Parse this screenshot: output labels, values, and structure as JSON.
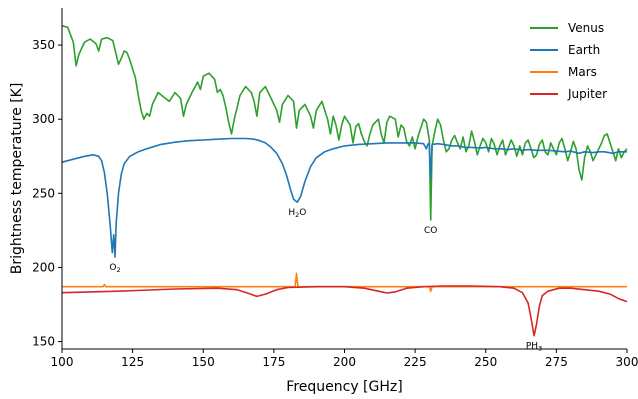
{
  "chart_data": {
    "type": "line",
    "title": "",
    "xlabel": "Frequency [GHz]",
    "ylabel": "Brightness temperature [K]",
    "xlim": [
      100,
      300
    ],
    "ylim": [
      145,
      375
    ],
    "xticks": [
      100,
      125,
      150,
      175,
      200,
      225,
      250,
      275,
      300
    ],
    "yticks": [
      150,
      200,
      250,
      300,
      350
    ],
    "grid": false,
    "legend_position": "top-right",
    "series": [
      {
        "name": "Venus",
        "color": "#2ca02c",
        "points": [
          [
            100,
            363
          ],
          [
            102,
            362
          ],
          [
            104,
            352
          ],
          [
            105,
            336
          ],
          [
            106,
            344
          ],
          [
            108,
            352
          ],
          [
            110,
            354
          ],
          [
            112,
            351
          ],
          [
            113,
            346
          ],
          [
            114,
            354
          ],
          [
            116,
            355
          ],
          [
            118,
            353
          ],
          [
            119,
            345
          ],
          [
            120,
            337
          ],
          [
            121,
            341
          ],
          [
            122,
            346
          ],
          [
            123,
            345
          ],
          [
            124,
            340
          ],
          [
            126,
            328
          ],
          [
            127,
            316
          ],
          [
            128,
            306
          ],
          [
            129,
            300
          ],
          [
            130,
            304
          ],
          [
            131,
            302
          ],
          [
            132,
            310
          ],
          [
            134,
            318
          ],
          [
            136,
            315
          ],
          [
            138,
            312
          ],
          [
            140,
            318
          ],
          [
            142,
            314
          ],
          [
            143,
            302
          ],
          [
            144,
            310
          ],
          [
            146,
            318
          ],
          [
            148,
            325
          ],
          [
            149,
            320
          ],
          [
            150,
            329
          ],
          [
            152,
            331
          ],
          [
            154,
            327
          ],
          [
            155,
            318
          ],
          [
            156,
            320
          ],
          [
            157,
            316
          ],
          [
            158,
            308
          ],
          [
            159,
            298
          ],
          [
            160,
            290
          ],
          [
            161,
            300
          ],
          [
            163,
            316
          ],
          [
            165,
            322
          ],
          [
            167,
            318
          ],
          [
            168,
            312
          ],
          [
            169,
            302
          ],
          [
            170,
            318
          ],
          [
            172,
            322
          ],
          [
            174,
            314
          ],
          [
            176,
            306
          ],
          [
            177,
            298
          ],
          [
            178,
            310
          ],
          [
            180,
            316
          ],
          [
            182,
            312
          ],
          [
            183,
            294
          ],
          [
            184,
            306
          ],
          [
            186,
            310
          ],
          [
            188,
            302
          ],
          [
            189,
            294
          ],
          [
            190,
            306
          ],
          [
            192,
            312
          ],
          [
            194,
            300
          ],
          [
            195,
            290
          ],
          [
            196,
            302
          ],
          [
            197,
            296
          ],
          [
            198,
            286
          ],
          [
            199,
            296
          ],
          [
            200,
            302
          ],
          [
            202,
            296
          ],
          [
            203,
            284
          ],
          [
            204,
            295
          ],
          [
            205,
            297
          ],
          [
            206,
            290
          ],
          [
            207,
            285
          ],
          [
            208,
            282
          ],
          [
            209,
            290
          ],
          [
            210,
            296
          ],
          [
            212,
            300
          ],
          [
            213,
            290
          ],
          [
            214,
            284
          ],
          [
            215,
            298
          ],
          [
            216,
            302
          ],
          [
            218,
            300
          ],
          [
            219,
            288
          ],
          [
            220,
            296
          ],
          [
            221,
            294
          ],
          [
            222,
            285
          ],
          [
            223,
            282
          ],
          [
            224,
            288
          ],
          [
            225,
            280
          ],
          [
            226,
            288
          ],
          [
            228,
            300
          ],
          [
            229,
            298
          ],
          [
            230,
            286
          ],
          [
            230.5,
            232
          ],
          [
            231,
            282
          ],
          [
            232,
            292
          ],
          [
            233,
            300
          ],
          [
            234,
            296
          ],
          [
            235,
            286
          ],
          [
            236,
            278
          ],
          [
            237,
            280
          ],
          [
            238,
            286
          ],
          [
            239,
            289
          ],
          [
            240,
            284
          ],
          [
            241,
            280
          ],
          [
            242,
            288
          ],
          [
            243,
            278
          ],
          [
            244,
            282
          ],
          [
            245,
            292
          ],
          [
            246,
            285
          ],
          [
            247,
            276
          ],
          [
            248,
            282
          ],
          [
            249,
            287
          ],
          [
            250,
            284
          ],
          [
            251,
            278
          ],
          [
            252,
            287
          ],
          [
            253,
            283
          ],
          [
            254,
            276
          ],
          [
            255,
            282
          ],
          [
            256,
            286
          ],
          [
            257,
            276
          ],
          [
            258,
            281
          ],
          [
            259,
            286
          ],
          [
            260,
            282
          ],
          [
            261,
            275
          ],
          [
            262,
            282
          ],
          [
            263,
            276
          ],
          [
            264,
            284
          ],
          [
            265,
            286
          ],
          [
            266,
            280
          ],
          [
            267,
            274
          ],
          [
            268,
            276
          ],
          [
            269,
            283
          ],
          [
            270,
            286
          ],
          [
            271,
            278
          ],
          [
            272,
            276
          ],
          [
            273,
            284
          ],
          [
            274,
            280
          ],
          [
            275,
            276
          ],
          [
            276,
            284
          ],
          [
            277,
            287
          ],
          [
            278,
            280
          ],
          [
            279,
            272
          ],
          [
            280,
            278
          ],
          [
            281,
            285
          ],
          [
            282,
            280
          ],
          [
            283,
            266
          ],
          [
            284,
            259
          ],
          [
            285,
            274
          ],
          [
            286,
            282
          ],
          [
            287,
            278
          ],
          [
            288,
            272
          ],
          [
            289,
            276
          ],
          [
            290,
            280
          ],
          [
            291,
            284
          ],
          [
            292,
            289
          ],
          [
            293,
            290
          ],
          [
            294,
            284
          ],
          [
            295,
            278
          ],
          [
            296,
            272
          ],
          [
            297,
            280
          ],
          [
            298,
            274
          ],
          [
            299,
            278
          ],
          [
            300,
            280
          ]
        ]
      },
      {
        "name": "Earth",
        "color": "#1f77b4",
        "points": [
          [
            100,
            271
          ],
          [
            104,
            273
          ],
          [
            108,
            275
          ],
          [
            111,
            276
          ],
          [
            113,
            275
          ],
          [
            114,
            272
          ],
          [
            115,
            264
          ],
          [
            116,
            250
          ],
          [
            117,
            230
          ],
          [
            117.8,
            210
          ],
          [
            118.3,
            222
          ],
          [
            118.75,
            207
          ],
          [
            119.2,
            230
          ],
          [
            120,
            250
          ],
          [
            121,
            263
          ],
          [
            122,
            270
          ],
          [
            124,
            275
          ],
          [
            127,
            278
          ],
          [
            130,
            280
          ],
          [
            135,
            283
          ],
          [
            140,
            284.5
          ],
          [
            145,
            285.5
          ],
          [
            150,
            286
          ],
          [
            155,
            286.5
          ],
          [
            160,
            287
          ],
          [
            165,
            287
          ],
          [
            168,
            286.5
          ],
          [
            170,
            285.5
          ],
          [
            172,
            284
          ],
          [
            174,
            281
          ],
          [
            176,
            277
          ],
          [
            178,
            270
          ],
          [
            179.5,
            262
          ],
          [
            181,
            252
          ],
          [
            182,
            246
          ],
          [
            183.3,
            244
          ],
          [
            184.5,
            248
          ],
          [
            186,
            258
          ],
          [
            188,
            268
          ],
          [
            190,
            274
          ],
          [
            193,
            278
          ],
          [
            196,
            280
          ],
          [
            200,
            282
          ],
          [
            205,
            283
          ],
          [
            210,
            283.5
          ],
          [
            215,
            284
          ],
          [
            220,
            284
          ],
          [
            225,
            284
          ],
          [
            228,
            283.5
          ],
          [
            229,
            280
          ],
          [
            229.5,
            283
          ],
          [
            230,
            284
          ],
          [
            230.5,
            260
          ],
          [
            231,
            283
          ],
          [
            233,
            283.5
          ],
          [
            235,
            283
          ],
          [
            238,
            282
          ],
          [
            240,
            282
          ],
          [
            243,
            281
          ],
          [
            245,
            281
          ],
          [
            248,
            280.5
          ],
          [
            250,
            281
          ],
          [
            253,
            280
          ],
          [
            255,
            280
          ],
          [
            258,
            279.5
          ],
          [
            260,
            280
          ],
          [
            263,
            279
          ],
          [
            265,
            279.5
          ],
          [
            268,
            279
          ],
          [
            270,
            279
          ],
          [
            272,
            279
          ],
          [
            275,
            278.5
          ],
          [
            278,
            278
          ],
          [
            280,
            278.5
          ],
          [
            283,
            277
          ],
          [
            285,
            278
          ],
          [
            288,
            277.5
          ],
          [
            290,
            278
          ],
          [
            292,
            278
          ],
          [
            295,
            277
          ],
          [
            297,
            278
          ],
          [
            300,
            278
          ]
        ]
      },
      {
        "name": "Mars",
        "color": "#ff7f0e",
        "points": [
          [
            100,
            187
          ],
          [
            114.5,
            187
          ],
          [
            115,
            188.5
          ],
          [
            115.5,
            187
          ],
          [
            182.5,
            187
          ],
          [
            183,
            196
          ],
          [
            183.5,
            187
          ],
          [
            230,
            187
          ],
          [
            230.5,
            184
          ],
          [
            231,
            187
          ],
          [
            300,
            187
          ]
        ]
      },
      {
        "name": "Jupiter",
        "color": "#d62728",
        "points": [
          [
            100,
            183
          ],
          [
            120,
            184
          ],
          [
            140,
            185.5
          ],
          [
            155,
            186
          ],
          [
            162,
            185
          ],
          [
            166,
            182.5
          ],
          [
            169,
            180.5
          ],
          [
            172,
            182
          ],
          [
            176,
            185
          ],
          [
            180,
            186.5
          ],
          [
            190,
            187
          ],
          [
            200,
            187
          ],
          [
            207,
            186
          ],
          [
            212,
            184
          ],
          [
            215,
            182.8
          ],
          [
            218,
            183.5
          ],
          [
            222,
            186
          ],
          [
            228,
            187
          ],
          [
            235,
            187.5
          ],
          [
            245,
            187.5
          ],
          [
            255,
            187
          ],
          [
            260,
            186
          ],
          [
            263,
            183
          ],
          [
            265,
            176
          ],
          [
            266,
            166
          ],
          [
            267.1,
            154
          ],
          [
            268,
            162
          ],
          [
            269,
            174
          ],
          [
            270,
            181
          ],
          [
            272,
            184
          ],
          [
            276,
            186
          ],
          [
            280,
            186
          ],
          [
            285,
            185
          ],
          [
            290,
            184
          ],
          [
            294,
            182
          ],
          [
            297,
            179
          ],
          [
            300,
            177
          ]
        ]
      }
    ],
    "annotations": [
      {
        "base": "O",
        "sub": "2",
        "x": 118.75,
        "y": 207
      },
      {
        "base": "H",
        "sub": "2",
        "tail": "O",
        "x": 183.3,
        "y": 244
      },
      {
        "base": "CO",
        "sub": "",
        "x": 230.5,
        "y": 232
      },
      {
        "base": "PH",
        "sub": "3",
        "x": 267.1,
        "y": 154
      }
    ]
  }
}
